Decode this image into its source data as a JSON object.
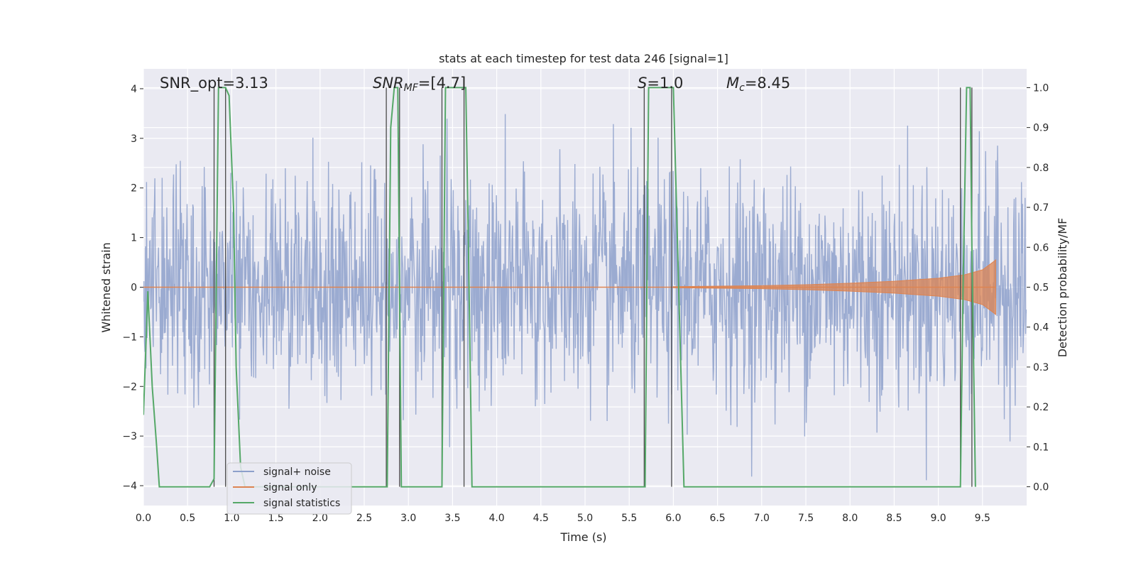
{
  "chart_data": {
    "type": "line",
    "title": "stats at each timestep for test data 246 [signal=1]",
    "xlabel": "Time (s)",
    "ylabel": "Whitened strain",
    "y2label": "Detection probability/MF",
    "xlim": [
      0,
      10
    ],
    "ylim": [
      -4.4,
      4.4
    ],
    "y2lim": [
      -0.047,
      1.047
    ],
    "xticks": [
      "0.0",
      "0.5",
      "1.0",
      "1.5",
      "2.0",
      "2.5",
      "3.0",
      "3.5",
      "4.0",
      "4.5",
      "5.0",
      "5.5",
      "6.0",
      "6.5",
      "7.0",
      "7.5",
      "8.0",
      "8.5",
      "9.0",
      "9.5"
    ],
    "yticks": [
      "4",
      "3",
      "2",
      "1",
      "0",
      "−1",
      "−2",
      "−3",
      "−4"
    ],
    "y2ticks": [
      "1.0",
      "0.9",
      "0.8",
      "0.7",
      "0.6",
      "0.5",
      "0.4",
      "0.3",
      "0.2",
      "0.1",
      "0.0"
    ],
    "grid": true,
    "legend_position": "bottom-left",
    "annotations": {
      "snr_opt": "SNR_opt=3.13",
      "snr_mf_italic": "SNR",
      "snr_mf_sub": "MF",
      "snr_mf_rest": "=[4.7]",
      "s_italic": "S",
      "s_rest": "=1.0",
      "mc_italic": "M",
      "mc_sub": "c",
      "mc_rest": "=8.45"
    },
    "series": [
      {
        "name": "signal+ noise",
        "color": "#8da0cb",
        "description_values": "white noise, amplitude roughly within [-4, 4], sampled over 0 to 10 s",
        "amplitude_std": 1.15
      },
      {
        "name": "signal only",
        "color": "#dd8452",
        "envelope_x": [
          6.0,
          7.0,
          7.5,
          8.0,
          8.5,
          9.0,
          9.3,
          9.5,
          9.6,
          9.65
        ],
        "envelope_y": [
          0.01,
          0.03,
          0.05,
          0.08,
          0.12,
          0.18,
          0.25,
          0.35,
          0.48,
          0.55
        ]
      },
      {
        "name": "signal statistics",
        "color": "#55a868",
        "x": [
          0.0,
          0.05,
          0.1,
          0.15,
          0.18,
          0.5,
          0.75,
          0.8,
          0.85,
          0.93,
          0.97,
          1.02,
          1.05,
          1.1,
          1.15,
          2.75,
          2.76,
          2.8,
          2.84,
          2.88,
          2.92,
          2.96,
          3.38,
          3.42,
          3.46,
          3.5,
          3.6,
          3.65,
          3.68,
          3.72,
          5.68,
          5.72,
          5.76,
          5.95,
          6.0,
          6.06,
          6.12,
          9.25,
          9.28,
          9.32,
          9.36,
          9.38,
          9.42
        ],
        "y": [
          0.18,
          0.49,
          0.25,
          0.1,
          0.0,
          0.0,
          0.0,
          0.02,
          1.0,
          1.0,
          0.98,
          0.7,
          0.3,
          0.05,
          0.0,
          0.0,
          0.0,
          0.9,
          1.0,
          1.0,
          0.0,
          0.0,
          0.0,
          1.0,
          1.0,
          1.0,
          1.0,
          1.0,
          0.6,
          0.0,
          0.0,
          1.0,
          1.0,
          1.0,
          1.0,
          0.5,
          0.0,
          0.0,
          0.5,
          1.0,
          1.0,
          0.6,
          0.0
        ]
      }
    ],
    "vlines_x": [
      0.8,
      0.93,
      2.75,
      2.9,
      3.38,
      3.63,
      5.67,
      5.98,
      9.25,
      9.38
    ]
  }
}
